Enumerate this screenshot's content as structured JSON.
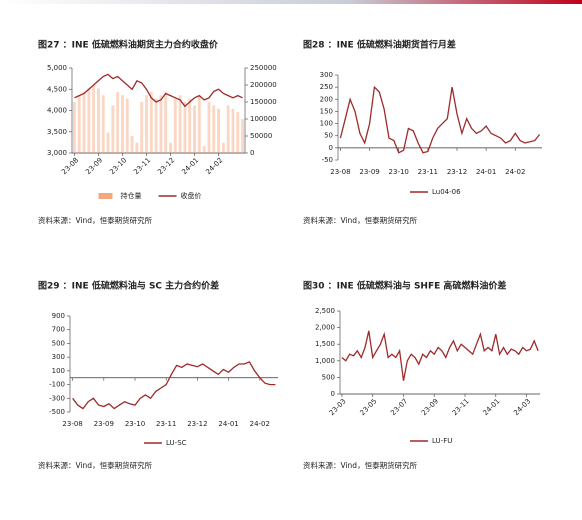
{
  "chart_data": [
    {
      "type": "bar-line",
      "title": "图27 ：INE 低硫燃料油期货主力合约收盘价",
      "source": "资料来源：Vind，恒泰期货研究所",
      "categories": [
        "23-08",
        null,
        null,
        null,
        null,
        "23-09",
        null,
        null,
        null,
        null,
        "23-10",
        null,
        null,
        null,
        null,
        "23-11",
        null,
        null,
        null,
        null,
        "23-12",
        null,
        null,
        null,
        null,
        "24-01",
        null,
        null,
        null,
        null,
        "24-02",
        null,
        null,
        null,
        null,
        null
      ],
      "ylim": [
        3000,
        5000
      ],
      "yticks": [
        {
          "value": 3000,
          "label": "3,000"
        },
        {
          "value": 3500,
          "label": "3,500"
        },
        {
          "value": 4000,
          "label": "4,000"
        },
        {
          "value": 4500,
          "label": "4,500"
        },
        {
          "value": 5000,
          "label": "5,000"
        }
      ],
      "y2lim": [
        0,
        250000
      ],
      "y2ticks": [
        0,
        50000,
        100000,
        150000,
        200000,
        250000
      ],
      "series": [
        {
          "name": "持仓量",
          "kind": "bar",
          "axis": "y2",
          "color": "#f3a77e",
          "values": [
            150000,
            170000,
            180000,
            190000,
            200000,
            190000,
            170000,
            60000,
            140000,
            180000,
            170000,
            160000,
            50000,
            30000,
            150000,
            170000,
            180000,
            160000,
            170000,
            180000,
            30000,
            160000,
            170000,
            150000,
            160000,
            140000,
            170000,
            20000,
            150000,
            140000,
            130000,
            30000,
            140000,
            130000,
            120000,
            100000
          ]
        },
        {
          "name": "收盘价",
          "kind": "line",
          "color": "#9e2a2b",
          "values": [
            4300,
            4350,
            4400,
            4500,
            4600,
            4700,
            4800,
            4850,
            4750,
            4800,
            4700,
            4600,
            4500,
            4700,
            4650,
            4500,
            4300,
            4200,
            4250,
            4400,
            4350,
            4300,
            4250,
            4100,
            4200,
            4300,
            4350,
            4250,
            4300,
            4450,
            4500,
            4400,
            4350,
            4300,
            4350,
            4300
          ]
        }
      ]
    },
    {
      "type": "line",
      "title": "图28 ：INE 低硫燃料油期货首行月差",
      "source": "资料来源：Vind，恒泰期货研究所",
      "categories": [
        "23-08",
        null,
        null,
        null,
        null,
        null,
        "23-09",
        null,
        null,
        null,
        null,
        null,
        "23-10",
        null,
        null,
        null,
        null,
        null,
        "23-11",
        null,
        null,
        null,
        null,
        null,
        "23-12",
        null,
        null,
        null,
        null,
        null,
        "24-01",
        null,
        null,
        null,
        null,
        null,
        "24-02",
        null,
        null,
        null,
        null,
        null
      ],
      "ylim": [
        -50,
        300
      ],
      "yticks": [
        -50,
        0,
        50,
        100,
        150,
        200,
        250,
        300
      ],
      "series": [
        {
          "name": "Lu04-06",
          "kind": "line",
          "color": "#9e2a2b",
          "values": [
            40,
            120,
            200,
            150,
            60,
            20,
            100,
            250,
            230,
            160,
            40,
            30,
            -20,
            -10,
            80,
            70,
            20,
            -20,
            -15,
            40,
            80,
            100,
            120,
            250,
            140,
            60,
            120,
            80,
            60,
            70,
            90,
            60,
            50,
            40,
            20,
            30,
            60,
            30,
            20,
            25,
            30,
            55
          ]
        }
      ]
    },
    {
      "type": "line",
      "title": "图29 ：INE 低硫燃料油与 SC 主力合约价差",
      "source": "资料来源：Vind，恒泰期货研究所",
      "categories": [
        "23-08",
        null,
        null,
        null,
        null,
        null,
        "23-09",
        null,
        null,
        null,
        null,
        null,
        "23-10",
        null,
        null,
        null,
        null,
        null,
        "23-11",
        null,
        null,
        null,
        null,
        null,
        "23-12",
        null,
        null,
        null,
        null,
        null,
        "24-01",
        null,
        null,
        null,
        null,
        null,
        "24-02",
        null,
        null,
        null
      ],
      "ylim": [
        -500,
        900
      ],
      "yticks": [
        -500,
        -300,
        -100,
        100,
        300,
        500,
        700,
        900
      ],
      "series": [
        {
          "name": "LU-SC",
          "kind": "line",
          "color": "#9e2a2b",
          "values": [
            -300,
            -400,
            -450,
            -350,
            -300,
            -400,
            -420,
            -380,
            -450,
            -400,
            -350,
            -380,
            -400,
            -300,
            -250,
            -300,
            -200,
            -150,
            -100,
            50,
            180,
            150,
            200,
            180,
            160,
            200,
            150,
            100,
            50,
            120,
            80,
            150,
            200,
            200,
            230,
            100,
            0,
            -80,
            -100,
            -100
          ]
        }
      ]
    },
    {
      "type": "line",
      "title": "图30 ：INE 低硫燃料油与 SHFE 高硫燃料油价差",
      "source": "资料来源：Vind，恒泰期货研究所",
      "categories": [
        "23-03",
        null,
        null,
        null,
        null,
        null,
        null,
        null,
        "23-05",
        null,
        null,
        null,
        null,
        null,
        null,
        null,
        "23-07",
        null,
        null,
        null,
        null,
        null,
        null,
        null,
        "23-09",
        null,
        null,
        null,
        null,
        null,
        null,
        null,
        "23-11",
        null,
        null,
        null,
        null,
        null,
        null,
        null,
        "24-01",
        null,
        null,
        null,
        null,
        null,
        null,
        null,
        "24-03",
        null,
        null,
        null
      ],
      "ylim": [
        0,
        2500
      ],
      "yticks": [
        0,
        500,
        {
          "value": 1000,
          "label": "1,000"
        },
        {
          "value": 1500,
          "label": "1,500"
        },
        {
          "value": 2000,
          "label": "2,000"
        },
        {
          "value": 2500,
          "label": "2,500"
        }
      ],
      "series": [
        {
          "name": "LU-FU",
          "kind": "line",
          "color": "#9e2a2b",
          "values": [
            1100,
            1000,
            1200,
            1150,
            1300,
            1100,
            1400,
            1900,
            1100,
            1300,
            1500,
            1800,
            1100,
            1200,
            1100,
            1300,
            400,
            1000,
            1200,
            1100,
            900,
            1200,
            1100,
            1300,
            1200,
            1400,
            1300,
            1100,
            1400,
            1600,
            1300,
            1500,
            1400,
            1300,
            1200,
            1500,
            1800,
            1300,
            1400,
            1300,
            1800,
            1200,
            1400,
            1200,
            1350,
            1300,
            1200,
            1400,
            1300,
            1350,
            1600,
            1300
          ]
        }
      ]
    }
  ]
}
